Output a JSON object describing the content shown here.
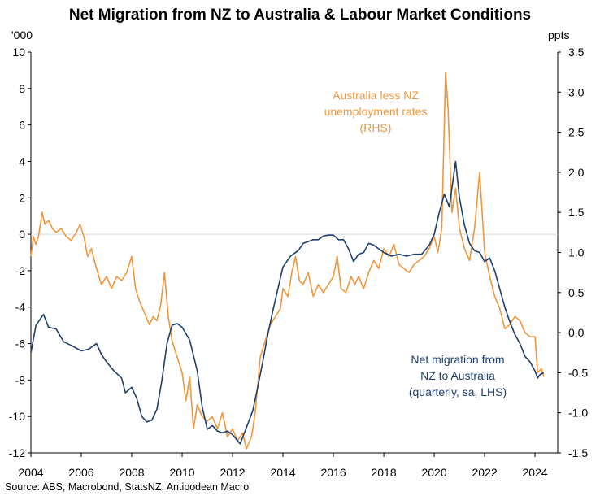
{
  "title": "Net Migration from NZ to Australia & Labour Market Conditions",
  "source": "Source: ABS, Macrobond, StatsNZ, Antipodean Macro",
  "colors": {
    "migration": "#1f3f6e",
    "unemployment": "#f0963c",
    "zero_line": "#d9d9d9"
  },
  "chart_data": {
    "type": "line",
    "title": "Net Migration from NZ to Australia & Labour Market Conditions",
    "left_axis": {
      "unit_label": "'000",
      "range": [
        -12,
        10
      ],
      "ticks": [
        10,
        8,
        6,
        4,
        2,
        0,
        -2,
        -4,
        -6,
        -8,
        -10,
        -12
      ]
    },
    "right_axis": {
      "unit_label": "ppts",
      "range": [
        -1.5,
        3.5
      ],
      "ticks": [
        "3.5",
        "3.0",
        "2.5",
        "2.0",
        "1.5",
        "1.0",
        "0.5",
        "0.0",
        "-0.5",
        "-1.0",
        "-1.5"
      ]
    },
    "x_axis": {
      "range": [
        2004,
        2024.9
      ],
      "ticks": [
        "2004",
        "2006",
        "2008",
        "2010",
        "2012",
        "2014",
        "2016",
        "2018",
        "2020",
        "2022",
        "2024"
      ]
    },
    "grid": false,
    "series": [
      {
        "name": "Net migration from NZ to Australia (quarterly, sa, LHS)",
        "axis": "left",
        "label_lines": [
          "Net migration from",
          "NZ to Australia",
          "(quarterly, sa, LHS)"
        ],
        "points": [
          [
            2004.0,
            -6.5
          ],
          [
            2004.2,
            -5.0
          ],
          [
            2004.5,
            -4.4
          ],
          [
            2004.7,
            -5.1
          ],
          [
            2005.0,
            -5.2
          ],
          [
            2005.3,
            -5.9
          ],
          [
            2005.6,
            -6.1
          ],
          [
            2006.0,
            -6.4
          ],
          [
            2006.3,
            -6.3
          ],
          [
            2006.6,
            -6.0
          ],
          [
            2006.8,
            -6.6
          ],
          [
            2007.0,
            -7.0
          ],
          [
            2007.3,
            -7.5
          ],
          [
            2007.6,
            -7.9
          ],
          [
            2007.75,
            -8.7
          ],
          [
            2008.0,
            -8.4
          ],
          [
            2008.2,
            -9.0
          ],
          [
            2008.4,
            -10.0
          ],
          [
            2008.6,
            -10.3
          ],
          [
            2008.8,
            -10.2
          ],
          [
            2009.0,
            -9.6
          ],
          [
            2009.2,
            -8.0
          ],
          [
            2009.4,
            -6.0
          ],
          [
            2009.6,
            -5.0
          ],
          [
            2009.8,
            -4.9
          ],
          [
            2010.0,
            -5.1
          ],
          [
            2010.3,
            -5.8
          ],
          [
            2010.6,
            -7.5
          ],
          [
            2010.8,
            -9.5
          ],
          [
            2011.0,
            -10.7
          ],
          [
            2011.2,
            -10.5
          ],
          [
            2011.4,
            -10.8
          ],
          [
            2011.6,
            -10.9
          ],
          [
            2011.8,
            -10.8
          ],
          [
            2012.0,
            -11.0
          ],
          [
            2012.3,
            -11.5
          ],
          [
            2012.5,
            -10.8
          ],
          [
            2012.8,
            -9.7
          ],
          [
            2013.0,
            -8.4
          ],
          [
            2013.2,
            -7.0
          ],
          [
            2013.4,
            -5.5
          ],
          [
            2013.6,
            -4.2
          ],
          [
            2013.8,
            -3.0
          ],
          [
            2014.0,
            -1.8
          ],
          [
            2014.3,
            -1.2
          ],
          [
            2014.6,
            -0.9
          ],
          [
            2014.8,
            -0.5
          ],
          [
            2015.0,
            -0.4
          ],
          [
            2015.2,
            -0.3
          ],
          [
            2015.4,
            -0.3
          ],
          [
            2015.6,
            -0.1
          ],
          [
            2015.8,
            -0.05
          ],
          [
            2016.0,
            -0.05
          ],
          [
            2016.2,
            -0.3
          ],
          [
            2016.4,
            -0.3
          ],
          [
            2016.6,
            -0.8
          ],
          [
            2016.8,
            -1.5
          ],
          [
            2017.0,
            -1.1
          ],
          [
            2017.2,
            -1.0
          ],
          [
            2017.4,
            -0.5
          ],
          [
            2017.6,
            -0.6
          ],
          [
            2017.8,
            -0.8
          ],
          [
            2018.0,
            -1.0
          ],
          [
            2018.3,
            -1.2
          ],
          [
            2018.6,
            -1.1
          ],
          [
            2018.9,
            -1.2
          ],
          [
            2019.2,
            -1.1
          ],
          [
            2019.5,
            -1.1
          ],
          [
            2019.8,
            -0.6
          ],
          [
            2020.0,
            0.0
          ],
          [
            2020.2,
            1.2
          ],
          [
            2020.4,
            2.2
          ],
          [
            2020.6,
            1.5
          ],
          [
            2020.75,
            3.0
          ],
          [
            2020.85,
            4.0
          ],
          [
            2021.0,
            2.0
          ],
          [
            2021.2,
            0.5
          ],
          [
            2021.4,
            -0.5
          ],
          [
            2021.6,
            -0.9
          ],
          [
            2021.8,
            -1.0
          ],
          [
            2022.0,
            -1.5
          ],
          [
            2022.2,
            -1.3
          ],
          [
            2022.4,
            -2.0
          ],
          [
            2022.6,
            -3.0
          ],
          [
            2022.8,
            -4.0
          ],
          [
            2023.0,
            -4.8
          ],
          [
            2023.2,
            -5.5
          ],
          [
            2023.4,
            -6.0
          ],
          [
            2023.6,
            -6.7
          ],
          [
            2023.8,
            -7.0
          ],
          [
            2024.0,
            -7.5
          ],
          [
            2024.1,
            -7.9
          ],
          [
            2024.2,
            -7.7
          ],
          [
            2024.35,
            -7.6
          ]
        ]
      },
      {
        "name": "Australia less NZ unemployment rates (RHS)",
        "axis": "right",
        "label_lines": [
          "Australia less NZ",
          "unemployment rates",
          "(RHS)"
        ],
        "points": [
          [
            2004.0,
            0.95
          ],
          [
            2004.1,
            1.2
          ],
          [
            2004.2,
            1.1
          ],
          [
            2004.3,
            1.2
          ],
          [
            2004.45,
            1.5
          ],
          [
            2004.55,
            1.35
          ],
          [
            2004.7,
            1.4
          ],
          [
            2004.85,
            1.3
          ],
          [
            2005.0,
            1.25
          ],
          [
            2005.2,
            1.3
          ],
          [
            2005.4,
            1.2
          ],
          [
            2005.6,
            1.15
          ],
          [
            2005.8,
            1.25
          ],
          [
            2005.95,
            1.35
          ],
          [
            2006.1,
            1.2
          ],
          [
            2006.25,
            0.95
          ],
          [
            2006.4,
            1.05
          ],
          [
            2006.6,
            0.8
          ],
          [
            2006.8,
            0.6
          ],
          [
            2007.0,
            0.7
          ],
          [
            2007.2,
            0.55
          ],
          [
            2007.4,
            0.7
          ],
          [
            2007.6,
            0.65
          ],
          [
            2007.8,
            0.75
          ],
          [
            2008.0,
            0.95
          ],
          [
            2008.15,
            0.55
          ],
          [
            2008.3,
            0.4
          ],
          [
            2008.5,
            0.25
          ],
          [
            2008.7,
            0.1
          ],
          [
            2008.85,
            0.2
          ],
          [
            2009.0,
            0.15
          ],
          [
            2009.15,
            0.35
          ],
          [
            2009.3,
            0.75
          ],
          [
            2009.45,
            0.2
          ],
          [
            2009.6,
            -0.1
          ],
          [
            2009.8,
            -0.3
          ],
          [
            2010.0,
            -0.5
          ],
          [
            2010.15,
            -0.85
          ],
          [
            2010.3,
            -0.55
          ],
          [
            2010.45,
            -1.2
          ],
          [
            2010.6,
            -0.9
          ],
          [
            2010.8,
            -1.05
          ],
          [
            2011.0,
            -1.1
          ],
          [
            2011.2,
            -1.05
          ],
          [
            2011.4,
            -1.2
          ],
          [
            2011.6,
            -1.0
          ],
          [
            2011.8,
            -1.3
          ],
          [
            2012.0,
            -1.2
          ],
          [
            2012.2,
            -1.35
          ],
          [
            2012.4,
            -1.25
          ],
          [
            2012.55,
            -1.45
          ],
          [
            2012.75,
            -1.3
          ],
          [
            2012.9,
            -1.0
          ],
          [
            2013.1,
            -0.3
          ],
          [
            2013.3,
            -0.1
          ],
          [
            2013.5,
            0.1
          ],
          [
            2013.7,
            0.2
          ],
          [
            2013.9,
            0.3
          ],
          [
            2014.0,
            0.55
          ],
          [
            2014.2,
            0.45
          ],
          [
            2014.35,
            0.75
          ],
          [
            2014.5,
            0.95
          ],
          [
            2014.65,
            0.65
          ],
          [
            2014.8,
            0.6
          ],
          [
            2015.0,
            0.75
          ],
          [
            2015.2,
            0.45
          ],
          [
            2015.4,
            0.6
          ],
          [
            2015.6,
            0.5
          ],
          [
            2015.8,
            0.6
          ],
          [
            2016.0,
            0.7
          ],
          [
            2016.15,
            0.95
          ],
          [
            2016.3,
            0.55
          ],
          [
            2016.5,
            0.5
          ],
          [
            2016.7,
            0.7
          ],
          [
            2016.85,
            0.6
          ],
          [
            2017.0,
            0.7
          ],
          [
            2017.2,
            0.55
          ],
          [
            2017.4,
            0.75
          ],
          [
            2017.6,
            0.9
          ],
          [
            2017.8,
            0.8
          ],
          [
            2018.0,
            1.05
          ],
          [
            2018.2,
            0.95
          ],
          [
            2018.4,
            1.1
          ],
          [
            2018.6,
            0.85
          ],
          [
            2018.8,
            0.8
          ],
          [
            2019.0,
            0.75
          ],
          [
            2019.2,
            0.85
          ],
          [
            2019.4,
            0.9
          ],
          [
            2019.6,
            0.95
          ],
          [
            2019.8,
            1.05
          ],
          [
            2020.0,
            1.2
          ],
          [
            2020.15,
            1.0
          ],
          [
            2020.3,
            1.3
          ],
          [
            2020.45,
            3.25
          ],
          [
            2020.55,
            2.8
          ],
          [
            2020.7,
            1.5
          ],
          [
            2020.85,
            1.8
          ],
          [
            2021.0,
            1.3
          ],
          [
            2021.2,
            1.05
          ],
          [
            2021.4,
            0.9
          ],
          [
            2021.6,
            1.3
          ],
          [
            2021.8,
            2.0
          ],
          [
            2022.0,
            1.0
          ],
          [
            2022.2,
            0.7
          ],
          [
            2022.4,
            0.45
          ],
          [
            2022.6,
            0.3
          ],
          [
            2022.8,
            0.05
          ],
          [
            2023.0,
            0.1
          ],
          [
            2023.2,
            0.2
          ],
          [
            2023.4,
            0.15
          ],
          [
            2023.6,
            0.0
          ],
          [
            2023.8,
            -0.05
          ],
          [
            2024.0,
            -0.05
          ],
          [
            2024.1,
            -0.5
          ],
          [
            2024.25,
            -0.45
          ],
          [
            2024.35,
            -0.55
          ]
        ]
      }
    ]
  }
}
